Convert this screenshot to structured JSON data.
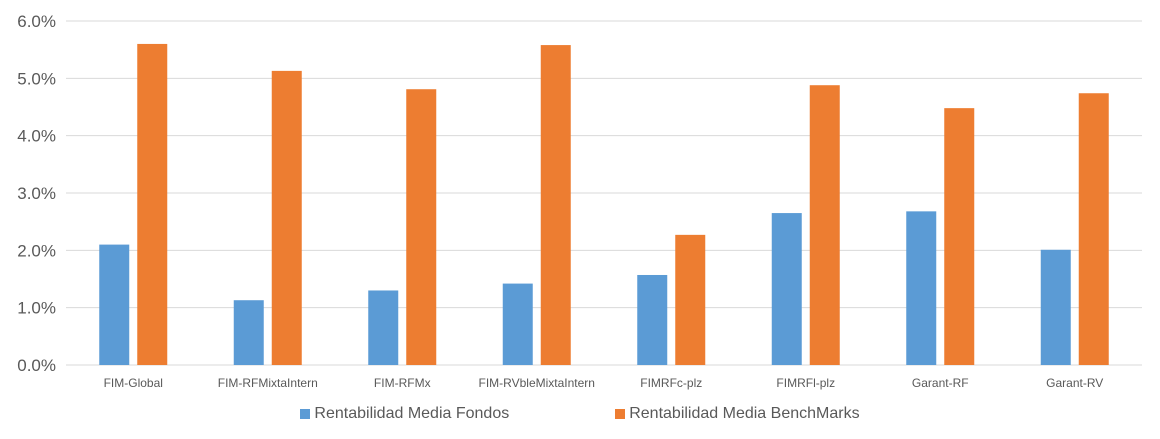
{
  "chart_data": {
    "type": "bar",
    "title": "",
    "xlabel": "",
    "ylabel": "",
    "ylim": [
      0,
      6
    ],
    "y_tick_format": "percent_1dp",
    "yticks": [
      "0.0%",
      "1.0%",
      "2.0%",
      "3.0%",
      "4.0%",
      "5.0%",
      "6.0%"
    ],
    "grid": "horizontal",
    "legend_position": "bottom",
    "categories": [
      "FIM-Global",
      "FIM-RFMixtaIntern",
      "FIM-RFMx",
      "FIM-RVbleMixtaIntern",
      "FIMRFc-plz",
      "FIMRFl-plz",
      "Garant-RF",
      "Garant-RV"
    ],
    "series": [
      {
        "name": "Rentabilidad Media Fondos",
        "color": "#5B9BD5",
        "values": [
          2.1,
          1.13,
          1.3,
          1.42,
          1.57,
          2.65,
          2.68,
          2.01
        ]
      },
      {
        "name": "Rentabilidad Media BenchMarks",
        "color": "#ED7D31",
        "values": [
          5.6,
          5.13,
          4.81,
          5.58,
          2.27,
          4.88,
          4.48,
          4.74
        ]
      }
    ]
  }
}
